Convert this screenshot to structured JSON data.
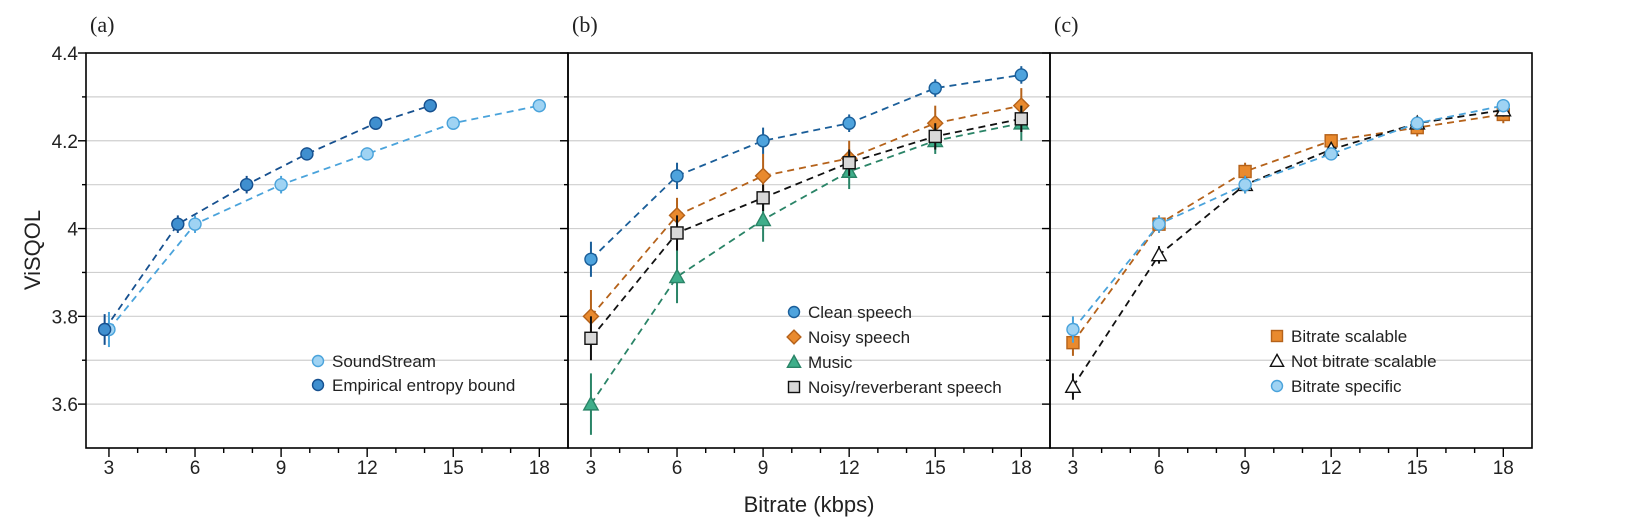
{
  "chart_data": {
    "type": "line",
    "ylabel": "ViSQOL",
    "xlabel": "Bitrate (kbps)",
    "ylim": [
      3.5,
      4.4
    ],
    "yticks": [
      3.6,
      3.8,
      4.0,
      4.2,
      4.4
    ],
    "ytick_labels": [
      "3.6",
      "3.8",
      "4",
      "4.2",
      "4.4"
    ],
    "xlim": [
      2.2,
      19.0
    ],
    "xticks": [
      3,
      6,
      9,
      12,
      15,
      18
    ],
    "xtick_labels": [
      "3",
      "6",
      "9",
      "12",
      "15",
      "18"
    ],
    "grid": "horizontal",
    "panels": [
      {
        "label": "(a)",
        "legend_position": "lower-right",
        "series": [
          {
            "name": "SoundStream",
            "marker": "circle",
            "color": "#9fd3f3",
            "edge": "#4aa3db",
            "x": [
              3,
              6,
              9,
              12,
              15,
              18
            ],
            "y": [
              3.77,
              4.01,
              4.1,
              4.17,
              4.24,
              4.28
            ],
            "err": [
              0.04,
              0.02,
              0.02,
              0.015,
              0.015,
              0.015
            ]
          },
          {
            "name": "Empirical entropy bound",
            "marker": "circle",
            "color": "#3f8fcf",
            "edge": "#16508f",
            "x": [
              2.85,
              5.4,
              7.8,
              9.9,
              12.3,
              14.2
            ],
            "y": [
              3.77,
              4.01,
              4.1,
              4.17,
              4.24,
              4.28
            ],
            "err": [
              0.035,
              0.02,
              0.02,
              0.015,
              0.015,
              0.015
            ]
          }
        ]
      },
      {
        "label": "(b)",
        "legend_position": "lower-right",
        "series": [
          {
            "name": "Clean speech",
            "marker": "circle",
            "color": "#4ea3dd",
            "edge": "#1a5e99",
            "x": [
              3,
              6,
              9,
              12,
              15,
              18
            ],
            "y": [
              3.93,
              4.12,
              4.2,
              4.24,
              4.32,
              4.35
            ],
            "err": [
              0.04,
              0.03,
              0.03,
              0.02,
              0.02,
              0.02
            ]
          },
          {
            "name": "Noisy speech",
            "marker": "diamond",
            "color": "#e98a2e",
            "edge": "#b5621a",
            "x": [
              3,
              6,
              9,
              12,
              15,
              18
            ],
            "y": [
              3.8,
              4.03,
              4.12,
              4.16,
              4.24,
              4.28
            ],
            "err": [
              0.06,
              0.04,
              0.05,
              0.04,
              0.04,
              0.04
            ]
          },
          {
            "name": "Music",
            "marker": "triangle",
            "color": "#3fae8a",
            "edge": "#2a8467",
            "x": [
              3,
              6,
              9,
              12,
              15,
              18
            ],
            "y": [
              3.6,
              3.89,
              4.02,
              4.13,
              4.2,
              4.24
            ],
            "err": [
              0.07,
              0.06,
              0.05,
              0.04,
              0.03,
              0.04
            ]
          },
          {
            "name": "Noisy/reverberant speech",
            "marker": "square",
            "color": "#d8d8d8",
            "edge": "#111111",
            "line": "#111111",
            "x": [
              3,
              6,
              9,
              12,
              15,
              18
            ],
            "y": [
              3.75,
              3.99,
              4.07,
              4.15,
              4.21,
              4.25
            ],
            "err": [
              0.05,
              0.04,
              0.03,
              0.03,
              0.03,
              0.03
            ]
          }
        ]
      },
      {
        "label": "(c)",
        "legend_position": "lower-right",
        "series": [
          {
            "name": "Bitrate scalable",
            "marker": "square",
            "color": "#e98a2e",
            "edge": "#b5621a",
            "x": [
              3,
              6,
              9,
              12,
              15,
              18
            ],
            "y": [
              3.74,
              4.01,
              4.13,
              4.2,
              4.23,
              4.26
            ],
            "err": [
              0.03,
              0.02,
              0.02,
              0.015,
              0.02,
              0.02
            ]
          },
          {
            "name": "Not bitrate scalable",
            "marker": "triangle-open",
            "color": "#ffffff",
            "edge": "#111111",
            "line": "#111111",
            "x": [
              3,
              6,
              9,
              12,
              15,
              18
            ],
            "y": [
              3.64,
              3.94,
              4.1,
              4.18,
              4.24,
              4.27
            ],
            "err": [
              0.03,
              0.02,
              0.02,
              0.015,
              0.015,
              0.015
            ]
          },
          {
            "name": "Bitrate specific",
            "marker": "circle",
            "color": "#9fd3f3",
            "edge": "#4aa3db",
            "x": [
              3,
              6,
              9,
              12,
              15,
              18
            ],
            "y": [
              3.77,
              4.01,
              4.1,
              4.17,
              4.24,
              4.28
            ],
            "err": [
              0.03,
              0.02,
              0.02,
              0.015,
              0.015,
              0.015
            ]
          }
        ]
      }
    ]
  }
}
